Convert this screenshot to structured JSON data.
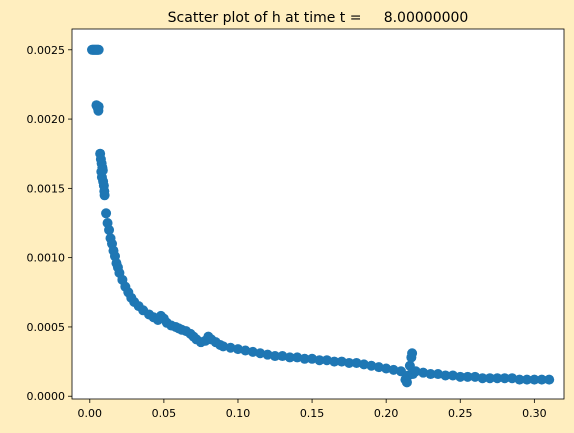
{
  "chart_data": {
    "type": "scatter",
    "title": "Scatter plot of h at time t =     8.00000000",
    "xlabel": "",
    "ylabel": "",
    "xlim": [
      -0.012,
      0.32
    ],
    "ylim": [
      -2e-05,
      0.00265
    ],
    "x_ticks": [
      0.0,
      0.05,
      0.1,
      0.15,
      0.2,
      0.25,
      0.3
    ],
    "x_tick_labels": [
      "0.00",
      "0.05",
      "0.10",
      "0.15",
      "0.20",
      "0.25",
      "0.30"
    ],
    "y_ticks": [
      0.0,
      0.0005,
      0.001,
      0.0015,
      0.002,
      0.0025
    ],
    "y_tick_labels": [
      "0.0000",
      "0.0005",
      "0.0010",
      "0.0015",
      "0.0020",
      "0.0025"
    ],
    "grid": false,
    "legend": "none",
    "colors": {
      "marker": "#1f77b4",
      "figure_bg": "#ffeebf",
      "axes_bg": "#ffffff"
    },
    "series": [
      {
        "points": [
          [
            0.0015,
            0.0025
          ],
          [
            0.002,
            0.0025
          ],
          [
            0.0025,
            0.0025
          ],
          [
            0.003,
            0.0025
          ],
          [
            0.0035,
            0.0025
          ],
          [
            0.004,
            0.0025
          ],
          [
            0.0045,
            0.0025
          ],
          [
            0.005,
            0.0025
          ],
          [
            0.0055,
            0.0025
          ],
          [
            0.006,
            0.0025
          ],
          [
            0.0045,
            0.0021
          ],
          [
            0.005,
            0.00209
          ],
          [
            0.0055,
            0.00208
          ],
          [
            0.006,
            0.00209
          ],
          [
            0.0058,
            0.00206
          ],
          [
            0.007,
            0.00175
          ],
          [
            0.0075,
            0.00171
          ],
          [
            0.008,
            0.00168
          ],
          [
            0.0085,
            0.00165
          ],
          [
            0.0078,
            0.00162
          ],
          [
            0.0082,
            0.00158
          ],
          [
            0.0088,
            0.00163
          ],
          [
            0.009,
            0.00155
          ],
          [
            0.0095,
            0.00152
          ],
          [
            0.0098,
            0.00148
          ],
          [
            0.01,
            0.00145
          ],
          [
            0.011,
            0.00132
          ],
          [
            0.012,
            0.00125
          ],
          [
            0.013,
            0.0012
          ],
          [
            0.014,
            0.00114
          ],
          [
            0.015,
            0.0011
          ],
          [
            0.016,
            0.00105
          ],
          [
            0.017,
            0.00101
          ],
          [
            0.018,
            0.00096
          ],
          [
            0.019,
            0.00093
          ],
          [
            0.02,
            0.00089
          ],
          [
            0.022,
            0.00084
          ],
          [
            0.024,
            0.00079
          ],
          [
            0.026,
            0.00075
          ],
          [
            0.028,
            0.00071
          ],
          [
            0.03,
            0.00068
          ],
          [
            0.033,
            0.00065
          ],
          [
            0.036,
            0.00062
          ],
          [
            0.04,
            0.00059
          ],
          [
            0.043,
            0.00057
          ],
          [
            0.046,
            0.00055
          ],
          [
            0.048,
            0.00058
          ],
          [
            0.05,
            0.00056
          ],
          [
            0.052,
            0.00053
          ],
          [
            0.055,
            0.00051
          ],
          [
            0.058,
            0.0005
          ],
          [
            0.06,
            0.00049
          ],
          [
            0.062,
            0.00048
          ],
          [
            0.065,
            0.00047
          ],
          [
            0.068,
            0.00045
          ],
          [
            0.07,
            0.00043
          ],
          [
            0.072,
            0.00041
          ],
          [
            0.075,
            0.00039
          ],
          [
            0.078,
            0.0004
          ],
          [
            0.08,
            0.00043
          ],
          [
            0.082,
            0.00041
          ],
          [
            0.085,
            0.00039
          ],
          [
            0.088,
            0.00037
          ],
          [
            0.09,
            0.00036
          ],
          [
            0.095,
            0.00035
          ],
          [
            0.1,
            0.00034
          ],
          [
            0.105,
            0.00033
          ],
          [
            0.11,
            0.00032
          ],
          [
            0.115,
            0.00031
          ],
          [
            0.12,
            0.0003
          ],
          [
            0.125,
            0.00029
          ],
          [
            0.13,
            0.00029
          ],
          [
            0.135,
            0.00028
          ],
          [
            0.14,
            0.00028
          ],
          [
            0.145,
            0.00027
          ],
          [
            0.15,
            0.00027
          ],
          [
            0.155,
            0.00026
          ],
          [
            0.16,
            0.00026
          ],
          [
            0.165,
            0.00025
          ],
          [
            0.17,
            0.00025
          ],
          [
            0.175,
            0.00024
          ],
          [
            0.18,
            0.00024
          ],
          [
            0.185,
            0.00023
          ],
          [
            0.19,
            0.00022
          ],
          [
            0.195,
            0.00021
          ],
          [
            0.2,
            0.0002
          ],
          [
            0.205,
            0.00019
          ],
          [
            0.21,
            0.00018
          ],
          [
            0.213,
            0.00012
          ],
          [
            0.214,
            0.0001
          ],
          [
            0.215,
            0.00015
          ],
          [
            0.216,
            0.00022
          ],
          [
            0.217,
            0.00028
          ],
          [
            0.2175,
            0.00031
          ],
          [
            0.218,
            0.00016
          ],
          [
            0.22,
            0.00018
          ],
          [
            0.225,
            0.00017
          ],
          [
            0.23,
            0.00016
          ],
          [
            0.235,
            0.00016
          ],
          [
            0.24,
            0.00015
          ],
          [
            0.245,
            0.00015
          ],
          [
            0.25,
            0.00014
          ],
          [
            0.255,
            0.00014
          ],
          [
            0.26,
            0.00014
          ],
          [
            0.265,
            0.00013
          ],
          [
            0.27,
            0.00013
          ],
          [
            0.275,
            0.00013
          ],
          [
            0.28,
            0.00013
          ],
          [
            0.285,
            0.00013
          ],
          [
            0.29,
            0.00012
          ],
          [
            0.295,
            0.00012
          ],
          [
            0.3,
            0.00012
          ],
          [
            0.305,
            0.00012
          ],
          [
            0.31,
            0.00012
          ]
        ]
      }
    ]
  }
}
